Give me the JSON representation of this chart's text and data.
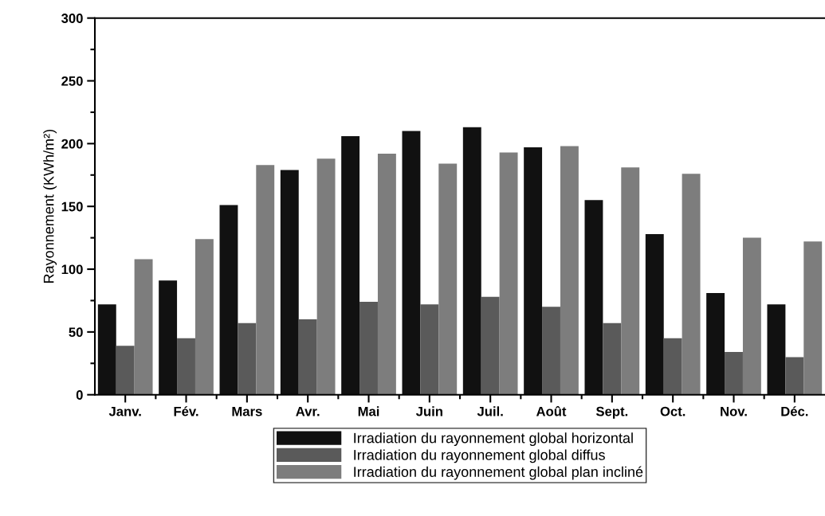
{
  "chart_data": {
    "type": "bar",
    "ylabel": "Rayonnement (KWh/m²)",
    "categories": [
      "Janv.",
      "Fév.",
      "Mars",
      "Avr.",
      "Mai",
      "Juin",
      "Juil.",
      "Août",
      "Sept.",
      "Oct.",
      "Nov.",
      "Déc."
    ],
    "series": [
      {
        "name": "Irradiation du rayonnement global horizontal",
        "color": "#111111",
        "values": [
          72,
          91,
          151,
          179,
          206,
          210,
          213,
          197,
          155,
          128,
          81,
          72
        ]
      },
      {
        "name": "Irradiation du rayonnement global diffus",
        "color": "#5a5a5a",
        "values": [
          39,
          45,
          57,
          60,
          74,
          72,
          78,
          70,
          57,
          45,
          34,
          30
        ]
      },
      {
        "name": "Irradiation du rayonnement global plan incliné",
        "color": "#7d7d7d",
        "values": [
          108,
          124,
          183,
          188,
          192,
          184,
          193,
          198,
          181,
          176,
          125,
          122
        ]
      }
    ],
    "ylim": [
      0,
      300
    ],
    "yticks": [
      0,
      50,
      100,
      150,
      200,
      250,
      300
    ],
    "grid": false,
    "legend": "bottom"
  }
}
